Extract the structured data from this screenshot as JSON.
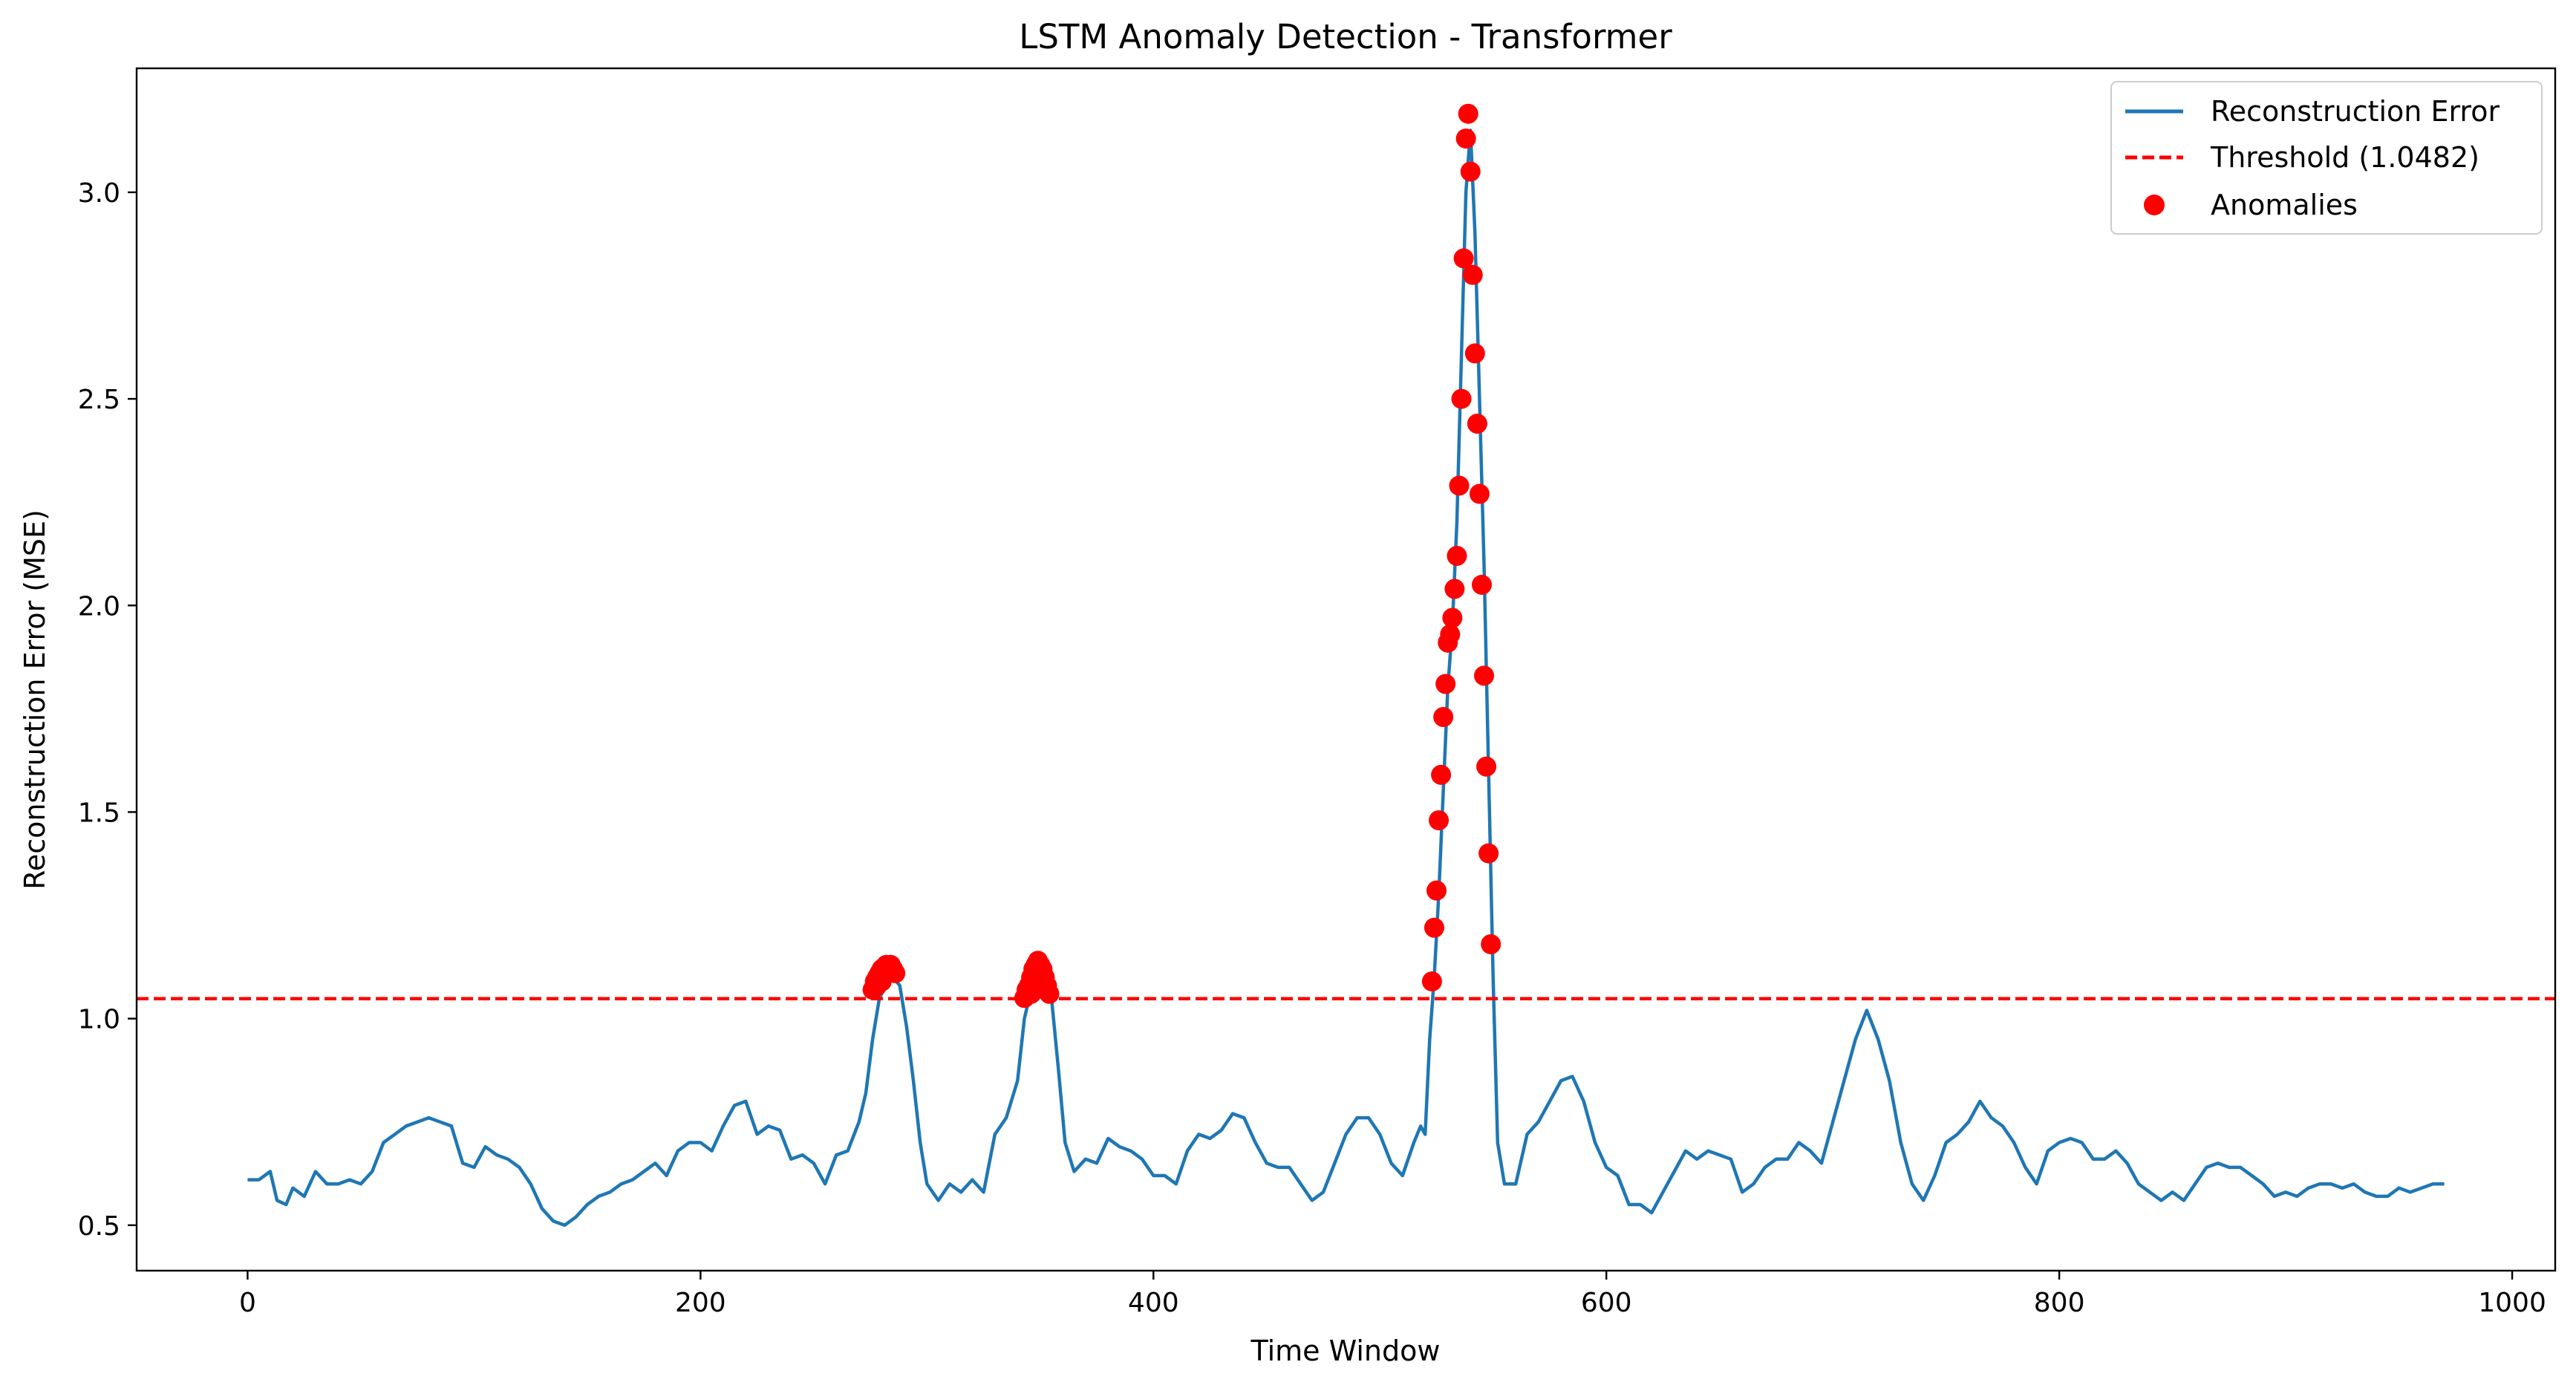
{
  "chart_data": {
    "type": "line",
    "title": "LSTM Anomaly Detection - Transformer",
    "xlabel": "Time Window",
    "ylabel": "Reconstruction Error (MSE)",
    "xlim": [
      -49,
      1019
    ],
    "ylim": [
      0.39,
      3.3
    ],
    "xticks": [
      0,
      200,
      400,
      600,
      800,
      1000
    ],
    "yticks": [
      0.5,
      1.0,
      1.5,
      2.0,
      2.5,
      3.0
    ],
    "grid": false,
    "legend_position": "top-right",
    "threshold": 1.0482,
    "colors": {
      "line": "#1f77b4",
      "threshold": "#ff0000",
      "anomaly": "#ff0000"
    },
    "series": [
      {
        "name": "Reconstruction Error",
        "style": "solid",
        "points": [
          [
            0,
            0.61
          ],
          [
            5,
            0.61
          ],
          [
            10,
            0.63
          ],
          [
            13,
            0.56
          ],
          [
            17,
            0.55
          ],
          [
            20,
            0.59
          ],
          [
            25,
            0.57
          ],
          [
            30,
            0.63
          ],
          [
            35,
            0.6
          ],
          [
            40,
            0.6
          ],
          [
            45,
            0.61
          ],
          [
            50,
            0.6
          ],
          [
            55,
            0.63
          ],
          [
            60,
            0.7
          ],
          [
            65,
            0.72
          ],
          [
            70,
            0.74
          ],
          [
            75,
            0.75
          ],
          [
            80,
            0.76
          ],
          [
            85,
            0.75
          ],
          [
            90,
            0.74
          ],
          [
            95,
            0.65
          ],
          [
            100,
            0.64
          ],
          [
            105,
            0.69
          ],
          [
            110,
            0.67
          ],
          [
            115,
            0.66
          ],
          [
            120,
            0.64
          ],
          [
            125,
            0.6
          ],
          [
            130,
            0.54
          ],
          [
            135,
            0.51
          ],
          [
            140,
            0.5
          ],
          [
            145,
            0.52
          ],
          [
            150,
            0.55
          ],
          [
            155,
            0.57
          ],
          [
            160,
            0.58
          ],
          [
            165,
            0.6
          ],
          [
            170,
            0.61
          ],
          [
            175,
            0.63
          ],
          [
            180,
            0.65
          ],
          [
            185,
            0.62
          ],
          [
            190,
            0.68
          ],
          [
            195,
            0.7
          ],
          [
            200,
            0.7
          ],
          [
            205,
            0.68
          ],
          [
            210,
            0.74
          ],
          [
            215,
            0.79
          ],
          [
            220,
            0.8
          ],
          [
            225,
            0.72
          ],
          [
            230,
            0.74
          ],
          [
            235,
            0.73
          ],
          [
            240,
            0.66
          ],
          [
            245,
            0.67
          ],
          [
            250,
            0.65
          ],
          [
            255,
            0.6
          ],
          [
            260,
            0.67
          ],
          [
            265,
            0.68
          ],
          [
            270,
            0.75
          ],
          [
            273,
            0.82
          ],
          [
            276,
            0.95
          ],
          [
            279,
            1.05
          ],
          [
            282,
            1.08
          ],
          [
            285,
            1.1
          ],
          [
            288,
            1.08
          ],
          [
            291,
            0.98
          ],
          [
            294,
            0.85
          ],
          [
            297,
            0.7
          ],
          [
            300,
            0.6
          ],
          [
            305,
            0.56
          ],
          [
            310,
            0.6
          ],
          [
            315,
            0.58
          ],
          [
            320,
            0.61
          ],
          [
            325,
            0.58
          ],
          [
            330,
            0.72
          ],
          [
            335,
            0.76
          ],
          [
            340,
            0.85
          ],
          [
            343,
            1.0
          ],
          [
            346,
            1.07
          ],
          [
            349,
            1.11
          ],
          [
            352,
            1.1
          ],
          [
            355,
            1.05
          ],
          [
            358,
            0.88
          ],
          [
            361,
            0.7
          ],
          [
            365,
            0.63
          ],
          [
            370,
            0.66
          ],
          [
            375,
            0.65
          ],
          [
            380,
            0.71
          ],
          [
            385,
            0.69
          ],
          [
            390,
            0.68
          ],
          [
            395,
            0.66
          ],
          [
            400,
            0.62
          ],
          [
            405,
            0.62
          ],
          [
            410,
            0.6
          ],
          [
            415,
            0.68
          ],
          [
            420,
            0.72
          ],
          [
            425,
            0.71
          ],
          [
            430,
            0.73
          ],
          [
            435,
            0.77
          ],
          [
            440,
            0.76
          ],
          [
            445,
            0.7
          ],
          [
            450,
            0.65
          ],
          [
            455,
            0.64
          ],
          [
            460,
            0.64
          ],
          [
            465,
            0.6
          ],
          [
            470,
            0.56
          ],
          [
            475,
            0.58
          ],
          [
            480,
            0.65
          ],
          [
            485,
            0.72
          ],
          [
            490,
            0.76
          ],
          [
            495,
            0.76
          ],
          [
            500,
            0.72
          ],
          [
            505,
            0.65
          ],
          [
            510,
            0.62
          ],
          [
            515,
            0.7
          ],
          [
            518,
            0.74
          ],
          [
            520,
            0.72
          ],
          [
            522,
            0.95
          ],
          [
            524,
            1.1
          ],
          [
            526,
            1.3
          ],
          [
            528,
            1.55
          ],
          [
            530,
            1.8
          ],
          [
            532,
            1.95
          ],
          [
            534,
            2.2
          ],
          [
            536,
            2.6
          ],
          [
            538,
            3.0
          ],
          [
            540,
            3.15
          ],
          [
            542,
            2.9
          ],
          [
            544,
            2.5
          ],
          [
            546,
            2.1
          ],
          [
            548,
            1.6
          ],
          [
            550,
            1.1
          ],
          [
            552,
            0.7
          ],
          [
            555,
            0.6
          ],
          [
            560,
            0.6
          ],
          [
            565,
            0.72
          ],
          [
            570,
            0.75
          ],
          [
            575,
            0.8
          ],
          [
            580,
            0.85
          ],
          [
            585,
            0.86
          ],
          [
            590,
            0.8
          ],
          [
            595,
            0.7
          ],
          [
            600,
            0.64
          ],
          [
            605,
            0.62
          ],
          [
            610,
            0.55
          ],
          [
            615,
            0.55
          ],
          [
            620,
            0.53
          ],
          [
            625,
            0.58
          ],
          [
            630,
            0.63
          ],
          [
            635,
            0.68
          ],
          [
            640,
            0.66
          ],
          [
            645,
            0.68
          ],
          [
            650,
            0.67
          ],
          [
            655,
            0.66
          ],
          [
            660,
            0.58
          ],
          [
            665,
            0.6
          ],
          [
            670,
            0.64
          ],
          [
            675,
            0.66
          ],
          [
            680,
            0.66
          ],
          [
            685,
            0.7
          ],
          [
            690,
            0.68
          ],
          [
            695,
            0.65
          ],
          [
            700,
            0.75
          ],
          [
            705,
            0.85
          ],
          [
            710,
            0.95
          ],
          [
            715,
            1.02
          ],
          [
            720,
            0.95
          ],
          [
            725,
            0.85
          ],
          [
            730,
            0.7
          ],
          [
            735,
            0.6
          ],
          [
            740,
            0.56
          ],
          [
            745,
            0.62
          ],
          [
            750,
            0.7
          ],
          [
            755,
            0.72
          ],
          [
            760,
            0.75
          ],
          [
            765,
            0.8
          ],
          [
            770,
            0.76
          ],
          [
            775,
            0.74
          ],
          [
            780,
            0.7
          ],
          [
            785,
            0.64
          ],
          [
            790,
            0.6
          ],
          [
            795,
            0.68
          ],
          [
            800,
            0.7
          ],
          [
            805,
            0.71
          ],
          [
            810,
            0.7
          ],
          [
            815,
            0.66
          ],
          [
            820,
            0.66
          ],
          [
            825,
            0.68
          ],
          [
            830,
            0.65
          ],
          [
            835,
            0.6
          ],
          [
            840,
            0.58
          ],
          [
            845,
            0.56
          ],
          [
            850,
            0.58
          ],
          [
            855,
            0.56
          ],
          [
            860,
            0.6
          ],
          [
            865,
            0.64
          ],
          [
            870,
            0.65
          ],
          [
            875,
            0.64
          ],
          [
            880,
            0.64
          ],
          [
            885,
            0.62
          ],
          [
            890,
            0.6
          ],
          [
            895,
            0.57
          ],
          [
            900,
            0.58
          ],
          [
            905,
            0.57
          ],
          [
            910,
            0.59
          ],
          [
            915,
            0.6
          ],
          [
            920,
            0.6
          ],
          [
            925,
            0.59
          ],
          [
            930,
            0.6
          ],
          [
            935,
            0.58
          ],
          [
            940,
            0.57
          ],
          [
            945,
            0.57
          ],
          [
            950,
            0.59
          ],
          [
            955,
            0.58
          ],
          [
            960,
            0.59
          ],
          [
            965,
            0.6
          ],
          [
            970,
            0.6
          ]
        ]
      },
      {
        "name": "Threshold (1.0482)",
        "style": "dashed",
        "value": 1.0482
      },
      {
        "name": "Anomalies",
        "style": "scatter",
        "points": [
          [
            276,
            1.07
          ],
          [
            277,
            1.09
          ],
          [
            278,
            1.1
          ],
          [
            279,
            1.11
          ],
          [
            280,
            1.12
          ],
          [
            281,
            1.11
          ],
          [
            282,
            1.13
          ],
          [
            283,
            1.12
          ],
          [
            284,
            1.13
          ],
          [
            285,
            1.12
          ],
          [
            286,
            1.11
          ],
          [
            278,
            1.08
          ],
          [
            280,
            1.09
          ],
          [
            343,
            1.05
          ],
          [
            344,
            1.07
          ],
          [
            345,
            1.08
          ],
          [
            346,
            1.1
          ],
          [
            347,
            1.12
          ],
          [
            348,
            1.13
          ],
          [
            349,
            1.14
          ],
          [
            350,
            1.13
          ],
          [
            351,
            1.12
          ],
          [
            352,
            1.1
          ],
          [
            353,
            1.08
          ],
          [
            354,
            1.06
          ],
          [
            346,
            1.06
          ],
          [
            352,
            1.07
          ],
          [
            523,
            1.09
          ],
          [
            524,
            1.22
          ],
          [
            525,
            1.31
          ],
          [
            526,
            1.48
          ],
          [
            527,
            1.59
          ],
          [
            528,
            1.73
          ],
          [
            529,
            1.81
          ],
          [
            530,
            1.91
          ],
          [
            531,
            1.93
          ],
          [
            532,
            1.97
          ],
          [
            533,
            2.04
          ],
          [
            534,
            2.12
          ],
          [
            535,
            2.29
          ],
          [
            536,
            2.5
          ],
          [
            537,
            2.84
          ],
          [
            538,
            3.13
          ],
          [
            539,
            3.19
          ],
          [
            540,
            3.05
          ],
          [
            541,
            2.8
          ],
          [
            542,
            2.61
          ],
          [
            543,
            2.44
          ],
          [
            544,
            2.27
          ],
          [
            545,
            2.05
          ],
          [
            546,
            1.83
          ],
          [
            547,
            1.61
          ],
          [
            548,
            1.4
          ],
          [
            549,
            1.18
          ]
        ]
      }
    ]
  }
}
